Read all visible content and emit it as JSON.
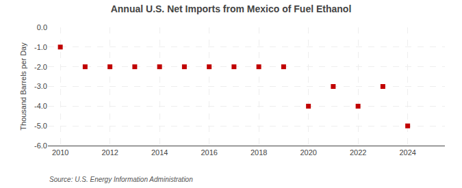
{
  "chart_data": {
    "type": "scatter",
    "title": "Annual U.S. Net Imports from Mexico of Fuel Ethanol",
    "ylabel": "Thousand Barrels per Day",
    "source": "Source: U.S. Energy Information Administration",
    "x": [
      2010,
      2011,
      2012,
      2013,
      2014,
      2015,
      2016,
      2017,
      2018,
      2019,
      2020,
      2021,
      2022,
      2023,
      2024
    ],
    "values": [
      -1,
      -2,
      -2,
      -2,
      -2,
      -2,
      -2,
      -2,
      -2,
      -2,
      -4,
      -3,
      -4,
      -3,
      -5
    ],
    "color": "#c00000",
    "marker": "square",
    "xlim": [
      2009.5,
      2025.5
    ],
    "xticks": [
      2010,
      2012,
      2014,
      2016,
      2018,
      2020,
      2022,
      2024
    ],
    "ylim": [
      -6.0,
      0.0
    ],
    "yticks": [
      {
        "value": 0.0,
        "label": "0.0"
      },
      {
        "value": -1.0,
        "label": "-1.0"
      },
      {
        "value": -2.0,
        "label": "-2.0"
      },
      {
        "value": -3.0,
        "label": "-3.0"
      },
      {
        "value": -4.0,
        "label": "-4.0"
      },
      {
        "value": -5.0,
        "label": "-5.0"
      },
      {
        "value": -6.0,
        "label": "-6.0"
      }
    ],
    "grid": true
  }
}
